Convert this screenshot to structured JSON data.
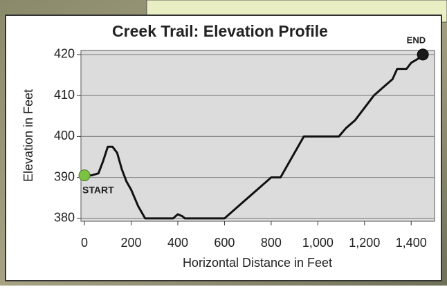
{
  "chart_data": {
    "type": "line",
    "title": "Creek Trail: Elevation Profile",
    "x_label": "Horizontal Distance in Feet",
    "y_label": "Elevation in Feet",
    "start_label": "START",
    "end_label": "END",
    "start_color": "#7cc242",
    "end_color": "#1a1a1a",
    "grid": true,
    "xlim": [
      -15,
      1500
    ],
    "ylim": [
      379.3,
      421
    ],
    "xticks": [
      0,
      200,
      400,
      600,
      800,
      {
        "value": 1000,
        "label": "1,000"
      },
      {
        "value": 1200,
        "label": "1,200"
      },
      {
        "value": 1400,
        "label": "1,400"
      }
    ],
    "yticks": [
      380,
      390,
      400,
      410,
      420
    ],
    "series": [
      {
        "color": "#111111",
        "x": [
          0,
          30,
          60,
          80,
          100,
          120,
          140,
          160,
          180,
          200,
          230,
          260,
          380,
          400,
          420,
          430,
          600,
          640,
          680,
          720,
          760,
          800,
          840,
          940,
          1090,
          1120,
          1160,
          1200,
          1240,
          1280,
          1320,
          1340,
          1380,
          1400,
          1430,
          1450
        ],
        "values": [
          390.5,
          390.5,
          391,
          394,
          397.5,
          397.5,
          396,
          392,
          389,
          387,
          383,
          380,
          380,
          381,
          380.5,
          380,
          380,
          382,
          384,
          386,
          388,
          390,
          390,
          400,
          400,
          402,
          404,
          407,
          410,
          412,
          414,
          416.5,
          416.5,
          418,
          419,
          420
        ]
      }
    ]
  }
}
